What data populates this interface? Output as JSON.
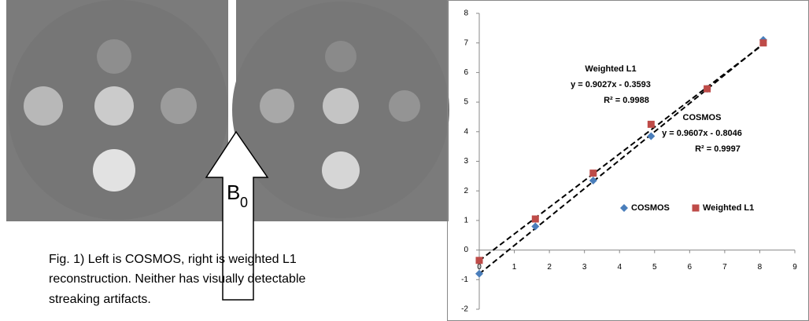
{
  "caption": [
    "Fig. 1) Left is COSMOS, right is weighted L1",
    "reconstruction. Neither has visually detectable",
    "streaking artifacts."
  ],
  "arrow_label": "B",
  "arrow_subscript": "0",
  "chart_data": {
    "type": "scatter",
    "xlim": [
      0,
      9
    ],
    "xticks": [
      0,
      1,
      2,
      3,
      4,
      5,
      6,
      7,
      8,
      9
    ],
    "ylim": [
      -2,
      8
    ],
    "yticks": [
      -2,
      -1,
      0,
      1,
      2,
      3,
      4,
      5,
      6,
      7,
      8
    ],
    "legend": "inside-right",
    "series": [
      {
        "name": "COSMOS",
        "color": "#4a7ebb",
        "marker": "diamond",
        "x": [
          0,
          1.6,
          3.25,
          4.9,
          6.5,
          8.1
        ],
        "values": [
          -0.8,
          0.8,
          2.35,
          3.85,
          5.45,
          7.1
        ],
        "trendline": {
          "slope": 0.9607,
          "intercept": -0.8046,
          "title": "COSMOS",
          "label": "y = 0.9607x - 0.8046",
          "r2_label": "R² = 0.9997"
        }
      },
      {
        "name": "Weighted L1",
        "color": "#be4b48",
        "marker": "square",
        "x": [
          0,
          1.6,
          3.25,
          4.9,
          6.5,
          8.1
        ],
        "values": [
          -0.35,
          1.05,
          2.6,
          4.25,
          5.45,
          7.0
        ],
        "trendline": {
          "slope": 0.9027,
          "intercept": -0.3593,
          "title": "Weighted L1",
          "label": "y = 0.9027x - 0.3593",
          "r2_label": "R² = 0.9988"
        }
      }
    ]
  }
}
